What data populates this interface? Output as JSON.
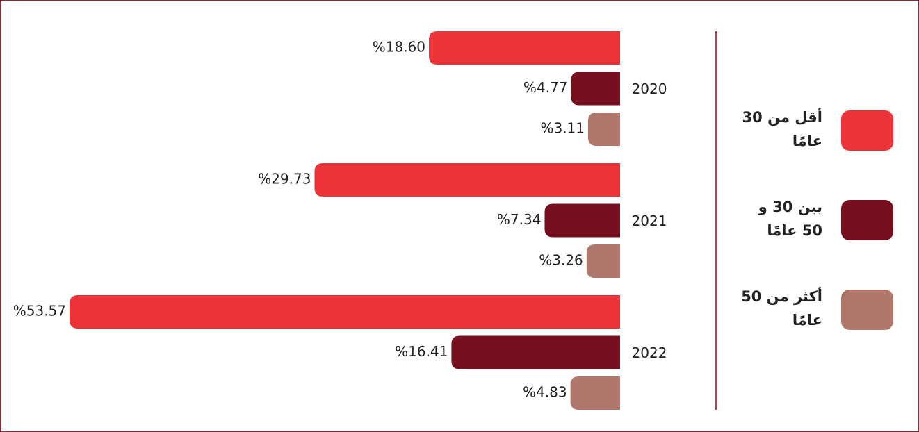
{
  "chart_data": {
    "type": "bar",
    "categories": [
      "2020",
      "2021",
      "2022"
    ],
    "series": [
      {
        "name": "أقل من 30 عامًا",
        "color": "#ee3338",
        "values": [
          18.6,
          29.73,
          53.57
        ],
        "value_labels": [
          "%18.60",
          "%29.73",
          "%53.57"
        ]
      },
      {
        "name": "بين 30 و 50 عامًا",
        "color": "#76101e",
        "values": [
          4.77,
          7.34,
          16.41
        ],
        "value_labels": [
          "%4.77",
          "%7.34",
          "%16.41"
        ]
      },
      {
        "name": "أكثر من 50 عامًا",
        "color": "#b0786c",
        "values": [
          3.11,
          3.26,
          4.83
        ],
        "value_labels": [
          "%3.11",
          "%3.26",
          "%4.83"
        ]
      }
    ]
  }
}
